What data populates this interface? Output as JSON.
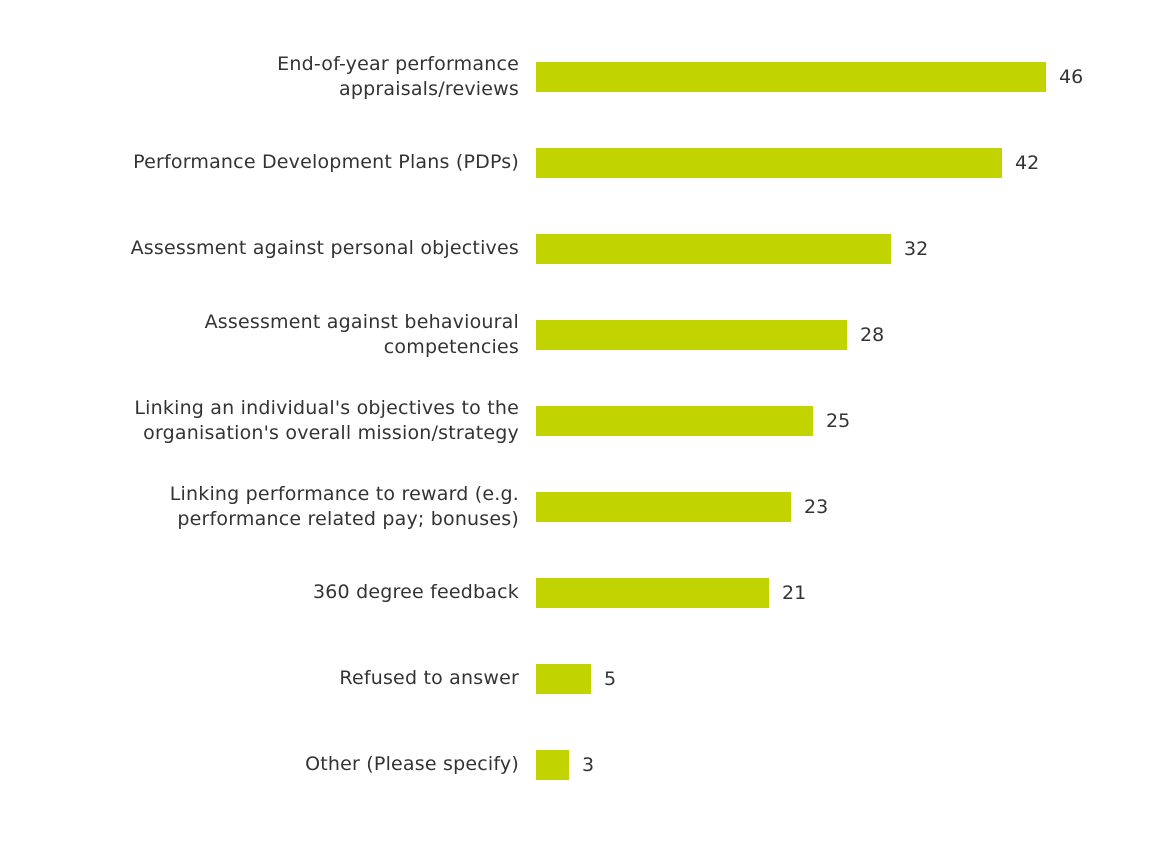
{
  "chart_data": {
    "type": "bar",
    "orientation": "horizontal",
    "title": "",
    "xlabel": "",
    "ylabel": "",
    "xlim": [
      0,
      46
    ],
    "grid": false,
    "legend": false,
    "categories": [
      "End-of-year performance appraisals/reviews",
      "Performance Development Plans (PDPs)",
      "Assessment against personal objectives",
      "Assessment against behavioural competencies",
      "Linking an individual's objectives to the organisation's overall mission/strategy",
      "Linking performance to reward (e.g. performance related pay; bonuses)",
      "360 degree feedback",
      "Refused to answer",
      "Other (Please specify)"
    ],
    "display_labels": [
      "End-of-year performance\nappraisals/reviews",
      "Performance Development Plans (PDPs)",
      "Assessment against personal objectives",
      "Assessment against behavioural\ncompetencies",
      "Linking an individual's objectives to the\norganisation's overall mission/strategy",
      "Linking performance to reward (e.g.\nperformance related pay; bonuses)",
      "360 degree feedback",
      "Refused to answer",
      "Other (Please specify)"
    ],
    "values": [
      46,
      42,
      32,
      28,
      25,
      23,
      21,
      5,
      3
    ],
    "data_labels_shown": true
  },
  "colors": {
    "bar": "#c1d400",
    "text": "#333333",
    "background": "#ffffff"
  }
}
